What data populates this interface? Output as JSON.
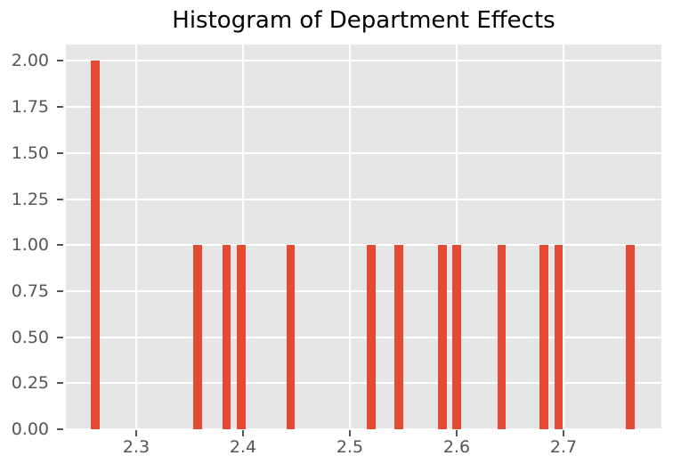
{
  "title": "Histogram of Department Effects",
  "chart_data": {
    "type": "bar",
    "subtype": "histogram",
    "title": "Histogram of Department Effects",
    "xlabel": "",
    "ylabel": "",
    "xlim": [
      2.2342,
      2.7917
    ],
    "ylim": [
      0,
      2.089
    ],
    "grid": true,
    "legend": false,
    "bin_width": 0.0079,
    "bin_centers": [
      2.2616,
      2.3576,
      2.3845,
      2.3983,
      2.4448,
      2.5202,
      2.5458,
      2.5868,
      2.5999,
      2.6423,
      2.6818,
      2.6953,
      2.7626
    ],
    "counts": [
      2,
      1,
      1,
      1,
      1,
      1,
      1,
      1,
      1,
      1,
      1,
      1,
      1
    ],
    "x_ticks": {
      "values": [
        2.3,
        2.4,
        2.5,
        2.6,
        2.7
      ],
      "labels": [
        "2.3",
        "2.4",
        "2.5",
        "2.6",
        "2.7"
      ]
    },
    "y_ticks": {
      "values": [
        0,
        0.25,
        0.5,
        0.75,
        1.0,
        1.25,
        1.5,
        1.75,
        2.0
      ],
      "labels": [
        "0.00",
        "0.25",
        "0.50",
        "0.75",
        "1.00",
        "1.25",
        "1.50",
        "1.75",
        "2.00"
      ]
    },
    "colors": {
      "bar": "#E24A33",
      "plot_background": "#E5E5E5",
      "gridline": "#FFFFFF",
      "tick_label": "#555555",
      "tick_mark": "#555555",
      "title": "#000000",
      "figure_background": "#FFFFFF"
    }
  }
}
